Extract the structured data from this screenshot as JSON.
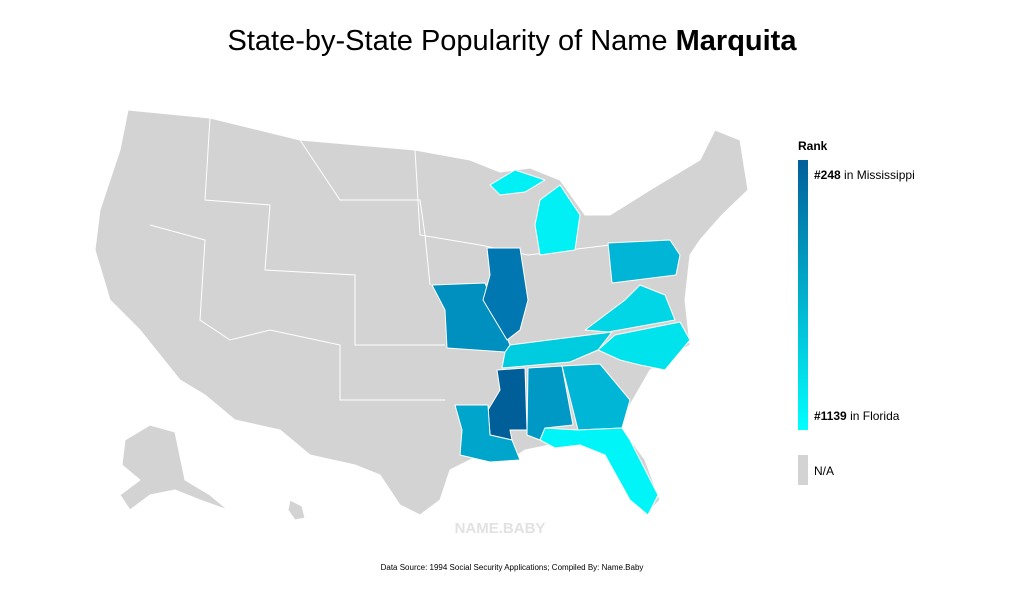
{
  "header": {
    "title": "State-by-State Popularity of Name",
    "name": "Marquita"
  },
  "legend": {
    "title": "Rank",
    "top": {
      "rank": "#248",
      "label": "in Mississippi"
    },
    "bottom": {
      "rank": "#1139",
      "label": "in Florida"
    },
    "na": "N/A"
  },
  "watermark": "NAME.BABY",
  "footer": "Data Source: 1994 Social Security Applications; Compiled By: Name.Baby"
}
